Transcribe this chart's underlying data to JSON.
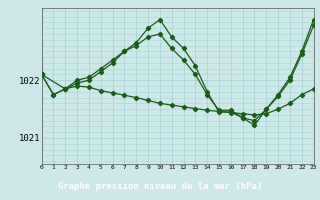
{
  "title": "Graphe pression niveau de la mer (hPa)",
  "background_color": "#cce8e8",
  "plot_bg_color": "#cce8e8",
  "bottom_bar_color": "#2d6e2d",
  "grid_color": "#aad4d4",
  "line_color": "#1a5c1a",
  "xlim": [
    0,
    23
  ],
  "ylim": [
    1020.55,
    1023.25
  ],
  "yticks": [
    1021,
    1022
  ],
  "series1_x": [
    0,
    1,
    2,
    3,
    4,
    5,
    6,
    7,
    8,
    9,
    10,
    11,
    12,
    13,
    14,
    15,
    16,
    17,
    18,
    19,
    20,
    21,
    22,
    23
  ],
  "series1_y": [
    1022.1,
    1021.75,
    1021.85,
    1021.95,
    1022.0,
    1022.15,
    1022.3,
    1022.5,
    1022.65,
    1022.9,
    1023.05,
    1022.75,
    1022.55,
    1022.25,
    1021.8,
    1021.45,
    1021.45,
    1021.35,
    1021.3,
    1021.5,
    1021.75,
    1022.05,
    1022.5,
    1023.05
  ],
  "series2_x": [
    0,
    1,
    2,
    3,
    4,
    5,
    6,
    7,
    8,
    9,
    10,
    11,
    12,
    13,
    14,
    15,
    16,
    17,
    18,
    19,
    20,
    21,
    22,
    23
  ],
  "series2_y": [
    1022.1,
    1021.75,
    1021.85,
    1021.9,
    1021.88,
    1021.82,
    1021.78,
    1021.74,
    1021.7,
    1021.65,
    1021.6,
    1021.57,
    1021.54,
    1021.51,
    1021.48,
    1021.46,
    1021.44,
    1021.42,
    1021.4,
    1021.42,
    1021.5,
    1021.6,
    1021.75,
    1021.85
  ],
  "series3_x": [
    0,
    2,
    3,
    4,
    5,
    6,
    7,
    8,
    9,
    10,
    11,
    12,
    13,
    14,
    15,
    16,
    17,
    18,
    19,
    20,
    21,
    22,
    23
  ],
  "series3_y": [
    1022.1,
    1021.85,
    1022.0,
    1022.05,
    1022.2,
    1022.35,
    1022.5,
    1022.6,
    1022.75,
    1022.8,
    1022.55,
    1022.35,
    1022.1,
    1021.75,
    1021.48,
    1021.48,
    1021.35,
    1021.22,
    1021.5,
    1021.72,
    1022.0,
    1022.45,
    1022.95
  ]
}
